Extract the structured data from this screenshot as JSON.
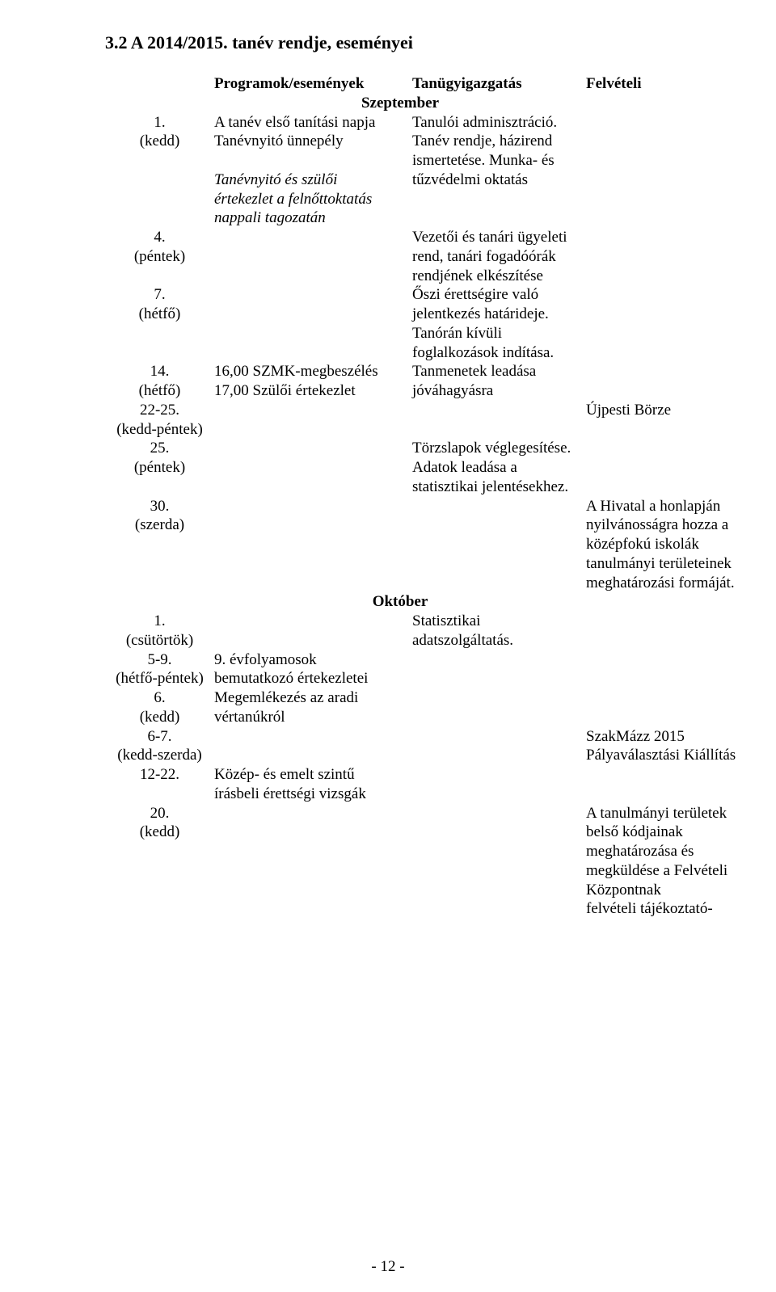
{
  "heading": "3.2 A 2014/2015. tanév rendje, eseményei",
  "header": {
    "events": "Programok/események",
    "admin": "Tanügyigazgatás",
    "admissions": "Felvételi",
    "month_sep": "Szeptember",
    "month_oct": "Október"
  },
  "rows": {
    "r1_date": "1.\n(kedd)",
    "r1_events": "A tanév első tanítási napja\nTanévnyitó ünnepély",
    "r1_events_ital": "Tanévnyitó és szülői értekezlet a felnőttoktatás nappali tagozatán",
    "r1_admin": "Tanulói adminisztráció.\nTanév rendje, házirend ismertetése. Munka- és tűzvédelmi oktatás",
    "r4_date": "4.\n(péntek)",
    "r4_admin": "Vezetői és tanári ügyeleti rend, tanári fogadóórák rendjének elkészítése",
    "r7_date": "7.\n(hétfő)",
    "r7_admin": "Őszi érettségire való jelentkezés határideje.\nTanórán kívüli foglalkozások indítása.",
    "r14_date": "14.\n(hétfő)",
    "r14_events": "16,00 SZMK-megbeszélés\n17,00 Szülői értekezlet",
    "r14_admin": "Tanmenetek leadása jóváhagyásra",
    "r22_date": "22-25.\n(kedd-péntek)",
    "r22_adm": "Újpesti Börze",
    "r25_date": "25.\n(péntek)",
    "r25_admin": "Törzslapok véglegesítése. Adatok leadása a statisztikai jelentésekhez.",
    "r30_date": "30.\n(szerda)",
    "r30_adm": "A Hivatal a honlapján nyilvánosságra hozza a középfokú iskolák tanulmányi területeinek meghatározási formáját.",
    "oct1_date": "1.\n(csütörtök)",
    "oct1_admin": "Statisztikai adatszolgáltatás.",
    "oct59_date": "5-9.\n(hétfő-péntek)",
    "oct59_events": "9. évfolyamosok bemutatkozó értekezletei",
    "oct6_date": "6.\n(kedd)",
    "oct6_events": "Megemlékezés az aradi vértanúkról",
    "oct67_date": "6-7.\n(kedd-szerda)",
    "oct67_adm": "SzakMázz 2015 Pályaválasztási Kiállítás",
    "oct1222_date": "12-22.",
    "oct1222_events": "Közép- és emelt szintű írásbeli érettségi vizsgák",
    "oct20_date": "20.\n(kedd)",
    "oct20_adm": "A tanulmányi területek belső kódjainak meghatározása és megküldése a Felvételi Központnak\nfelvételi tájékoztató-"
  },
  "page_number": "- 12 -"
}
